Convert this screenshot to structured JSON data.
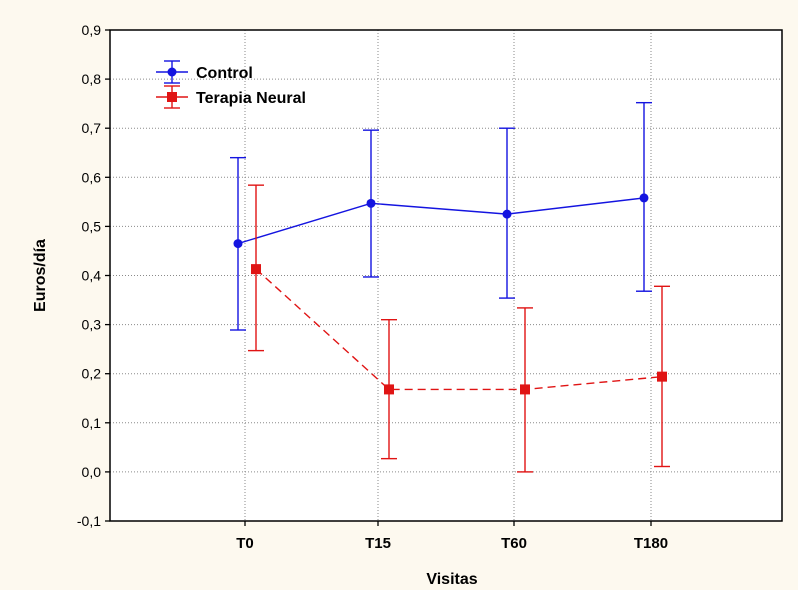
{
  "chart_data": {
    "type": "line",
    "categories": [
      "T0",
      "T15",
      "T60",
      "T180"
    ],
    "xlabel": "Visitas",
    "ylabel": "Euros/día",
    "ylim": [
      -0.1,
      0.9
    ],
    "yticks": [
      "-0,1",
      "0,0",
      "0,1",
      "0,2",
      "0,3",
      "0,4",
      "0,5",
      "0,6",
      "0,7",
      "0,8",
      "0,9"
    ],
    "grid": true,
    "legend_position": "top-left",
    "series": [
      {
        "name": "Control",
        "color": "#1414e0",
        "line_style": "solid",
        "marker": "circle",
        "values": [
          0.465,
          0.547,
          0.525,
          0.558
        ],
        "lower": [
          0.289,
          0.397,
          0.354,
          0.368
        ],
        "upper": [
          0.64,
          0.696,
          0.7,
          0.752
        ]
      },
      {
        "name": "Terapia Neural",
        "color": "#e01414",
        "line_style": "dashed",
        "marker": "square",
        "values": [
          0.413,
          0.168,
          0.168,
          0.194
        ],
        "lower": [
          0.247,
          0.027,
          0.0,
          0.011
        ],
        "upper": [
          0.584,
          0.31,
          0.334,
          0.378
        ]
      }
    ]
  }
}
